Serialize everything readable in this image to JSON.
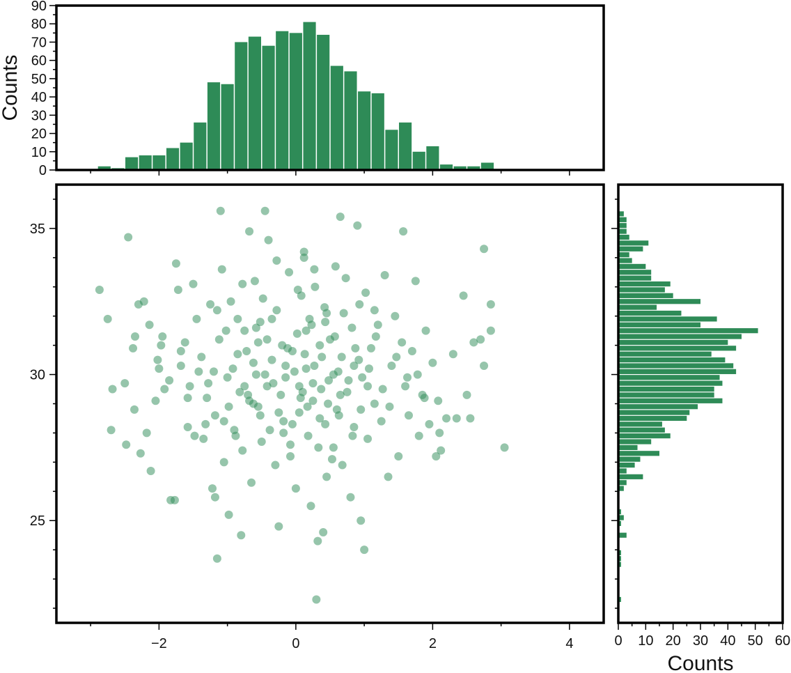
{
  "colors": {
    "fill": "#2e8b57",
    "frame": "#000000"
  },
  "chart_data": [
    {
      "id": "top-histogram",
      "type": "bar",
      "orientation": "vertical",
      "title": "",
      "xlabel": "",
      "ylabel": "Counts",
      "xlim": [
        -3.5,
        4.5
      ],
      "ylim": [
        0,
        90
      ],
      "yticks": [
        "0",
        "10",
        "20",
        "30",
        "40",
        "50",
        "60",
        "70",
        "80",
        "90"
      ],
      "bin_edges": [
        -3.1,
        -2.9,
        -2.7,
        -2.5,
        -2.3,
        -2.1,
        -1.9,
        -1.7,
        -1.5,
        -1.3,
        -1.1,
        -0.9,
        -0.7,
        -0.5,
        -0.3,
        -0.1,
        0.1,
        0.3,
        0.5,
        0.7,
        0.9,
        1.1,
        1.3,
        1.5,
        1.7,
        1.9,
        2.1,
        2.3,
        2.5,
        2.7,
        2.9,
        3.1
      ],
      "values": [
        0,
        2,
        1,
        7,
        8,
        8,
        12,
        15,
        26,
        48,
        47,
        70,
        73,
        68,
        76,
        75,
        81,
        74,
        57,
        54,
        43,
        42,
        22,
        26,
        10,
        13,
        3,
        2,
        2,
        4,
        0
      ]
    },
    {
      "id": "right-histogram",
      "type": "bar",
      "orientation": "horizontal",
      "title": "",
      "xlabel": "Counts",
      "ylabel": "",
      "xlim": [
        0,
        60
      ],
      "ylim": [
        21.5,
        36.5
      ],
      "xticks": [
        "0",
        "10",
        "20",
        "30",
        "40",
        "50",
        "60"
      ],
      "bin_edges": [
        22.2,
        22.4,
        22.6,
        22.8,
        23.0,
        23.2,
        23.4,
        23.6,
        23.8,
        24.0,
        24.2,
        24.4,
        24.6,
        24.8,
        25.0,
        25.2,
        25.4,
        25.6,
        25.8,
        26.0,
        26.2,
        26.4,
        26.6,
        26.8,
        27.0,
        27.2,
        27.4,
        27.6,
        27.8,
        28.0,
        28.2,
        28.4,
        28.6,
        28.8,
        29.0,
        29.2,
        29.4,
        29.6,
        29.8,
        30.0,
        30.2,
        30.4,
        30.6,
        30.8,
        31.0,
        31.2,
        31.4,
        31.6,
        31.8,
        32.0,
        32.2,
        32.4,
        32.6,
        32.8,
        33.0,
        33.2,
        33.4,
        33.6,
        33.8,
        34.0,
        34.2,
        34.4,
        34.6,
        34.8,
        35.0,
        35.2,
        35.4,
        35.6
      ],
      "values": [
        1,
        0,
        0,
        0,
        0,
        0,
        1,
        1,
        1,
        0,
        0,
        3,
        0,
        1,
        2,
        1,
        0,
        0,
        0,
        2,
        3,
        9,
        3,
        6,
        8,
        15,
        7,
        12,
        19,
        17,
        16,
        25,
        26,
        29,
        38,
        35,
        35,
        38,
        37,
        43,
        42,
        39,
        34,
        43,
        40,
        45,
        51,
        30,
        36,
        23,
        14,
        30,
        20,
        17,
        19,
        12,
        12,
        10,
        5,
        4,
        9,
        11,
        4,
        3,
        3,
        3,
        2,
        2
      ]
    },
    {
      "id": "scatter",
      "type": "scatter",
      "title": "",
      "xlabel": "",
      "ylabel": "",
      "xlim": [
        -3.5,
        4.5
      ],
      "ylim": [
        21.5,
        36.5
      ],
      "xticks": [
        "−2",
        "0",
        "2",
        "4"
      ],
      "yticks": [
        "25",
        "30",
        "35"
      ],
      "points": [
        [
          -2.87,
          32.9
        ],
        [
          -2.75,
          31.9
        ],
        [
          -2.68,
          29.5
        ],
        [
          -2.5,
          29.7
        ],
        [
          -2.45,
          34.7
        ],
        [
          -2.38,
          30.9
        ],
        [
          -2.35,
          31.3
        ],
        [
          -2.3,
          32.4
        ],
        [
          -2.22,
          32.5
        ],
        [
          -2.14,
          31.7
        ],
        [
          -2.7,
          28.1
        ],
        [
          -2.48,
          27.6
        ],
        [
          -2.36,
          28.8
        ],
        [
          -2.27,
          27.3
        ],
        [
          -2.18,
          28.0
        ],
        [
          -2.12,
          26.7
        ],
        [
          -2.05,
          29.1
        ],
        [
          -2.0,
          30.2
        ],
        [
          -1.97,
          31.0
        ],
        [
          -1.92,
          29.5
        ],
        [
          -1.83,
          25.7
        ],
        [
          -1.77,
          25.7
        ],
        [
          -1.75,
          33.8
        ],
        [
          -1.72,
          32.9
        ],
        [
          -1.68,
          30.3
        ],
        [
          -1.62,
          31.1
        ],
        [
          -1.58,
          28.2
        ],
        [
          -1.55,
          29.6
        ],
        [
          -1.5,
          33.1
        ],
        [
          -1.45,
          31.9
        ],
        [
          -1.38,
          30.6
        ],
        [
          -1.35,
          27.8
        ],
        [
          -1.3,
          29.2
        ],
        [
          -1.25,
          32.4
        ],
        [
          -1.2,
          30.1
        ],
        [
          -1.18,
          28.6
        ],
        [
          -1.15,
          23.7
        ],
        [
          -1.12,
          31.2
        ],
        [
          -1.1,
          35.6
        ],
        [
          -1.08,
          33.6
        ],
        [
          -1.22,
          26.1
        ],
        [
          -1.18,
          25.8
        ],
        [
          -1.05,
          27.0
        ],
        [
          -1.0,
          29.9
        ],
        [
          -0.98,
          25.2
        ],
        [
          -0.95,
          32.5
        ],
        [
          -0.9,
          28.1
        ],
        [
          -0.85,
          30.7
        ],
        [
          -0.8,
          24.5
        ],
        [
          -0.78,
          27.4
        ],
        [
          -0.75,
          31.5
        ],
        [
          -0.7,
          29.3
        ],
        [
          -0.68,
          34.9
        ],
        [
          -0.65,
          26.3
        ],
        [
          -0.6,
          33.2
        ],
        [
          -0.58,
          30.0
        ],
        [
          -0.55,
          28.9
        ],
        [
          -0.52,
          31.8
        ],
        [
          -0.5,
          27.7
        ],
        [
          -0.45,
          35.6
        ],
        [
          -0.42,
          29.6
        ],
        [
          -0.4,
          34.6
        ],
        [
          -0.35,
          30.5
        ],
        [
          -0.3,
          26.9
        ],
        [
          -0.28,
          32.2
        ],
        [
          -0.25,
          24.8
        ],
        [
          -0.2,
          31.0
        ],
        [
          -0.18,
          28.4
        ],
        [
          -0.15,
          29.9
        ],
        [
          -0.1,
          33.5
        ],
        [
          -0.08,
          27.2
        ],
        [
          -0.05,
          30.8
        ],
        [
          0.0,
          26.1
        ],
        [
          0.02,
          31.4
        ],
        [
          0.05,
          28.7
        ],
        [
          0.08,
          32.7
        ],
        [
          0.1,
          29.4
        ],
        [
          0.12,
          34.2
        ],
        [
          0.15,
          30.2
        ],
        [
          0.18,
          27.9
        ],
        [
          0.2,
          31.9
        ],
        [
          0.22,
          25.5
        ],
        [
          0.25,
          29.1
        ],
        [
          0.28,
          33.0
        ],
        [
          0.3,
          22.3
        ],
        [
          0.32,
          24.3
        ],
        [
          0.35,
          28.5
        ],
        [
          0.38,
          30.6
        ],
        [
          0.4,
          24.6
        ],
        [
          0.42,
          32.3
        ],
        [
          0.45,
          26.5
        ],
        [
          0.48,
          29.8
        ],
        [
          0.5,
          31.2
        ],
        [
          0.55,
          27.5
        ],
        [
          0.58,
          33.7
        ],
        [
          0.6,
          28.8
        ],
        [
          0.62,
          30.1
        ],
        [
          0.65,
          35.4
        ],
        [
          0.68,
          26.9
        ],
        [
          0.7,
          32.1
        ],
        [
          0.75,
          29.4
        ],
        [
          0.8,
          25.8
        ],
        [
          0.82,
          31.6
        ],
        [
          0.85,
          28.2
        ],
        [
          0.9,
          35.1
        ],
        [
          0.92,
          30.5
        ],
        [
          0.95,
          25.0
        ],
        [
          1.0,
          24.0
        ],
        [
          1.02,
          32.8
        ],
        [
          1.05,
          27.8
        ],
        [
          1.1,
          30.9
        ],
        [
          1.15,
          29.0
        ],
        [
          1.2,
          31.7
        ],
        [
          1.25,
          28.4
        ],
        [
          1.3,
          33.4
        ],
        [
          1.35,
          26.5
        ],
        [
          1.4,
          30.3
        ],
        [
          1.45,
          32.0
        ],
        [
          1.5,
          27.2
        ],
        [
          1.55,
          31.1
        ],
        [
          1.57,
          34.9
        ],
        [
          1.6,
          29.6
        ],
        [
          1.65,
          28.6
        ],
        [
          1.7,
          30.8
        ],
        [
          1.75,
          33.2
        ],
        [
          1.8,
          27.9
        ],
        [
          1.85,
          29.3
        ],
        [
          1.9,
          31.5
        ],
        [
          1.95,
          28.3
        ],
        [
          2.0,
          30.4
        ],
        [
          2.05,
          27.2
        ],
        [
          2.08,
          29.1
        ],
        [
          2.1,
          28.0
        ],
        [
          2.12,
          27.4
        ],
        [
          2.2,
          28.5
        ],
        [
          2.3,
          30.7
        ],
        [
          2.35,
          28.5
        ],
        [
          2.45,
          32.7
        ],
        [
          2.5,
          29.3
        ],
        [
          2.55,
          28.5
        ],
        [
          2.6,
          31.1
        ],
        [
          2.7,
          31.2
        ],
        [
          2.75,
          34.3
        ],
        [
          2.75,
          30.3
        ],
        [
          2.85,
          31.5
        ],
        [
          2.85,
          32.4
        ],
        [
          3.05,
          27.5
        ],
        [
          -0.62,
          30.4
        ],
        [
          -0.33,
          29.7
        ],
        [
          -0.12,
          30.9
        ],
        [
          0.07,
          29.2
        ],
        [
          0.27,
          30.3
        ],
        [
          0.47,
          29.0
        ],
        [
          0.67,
          30.6
        ],
        [
          -0.82,
          29.4
        ],
        [
          -0.52,
          28.6
        ],
        [
          -0.22,
          29.3
        ],
        [
          0.17,
          28.9
        ],
        [
          0.37,
          29.5
        ],
        [
          0.77,
          29.8
        ],
        [
          -0.72,
          30.8
        ],
        [
          -0.42,
          31.2
        ],
        [
          -0.02,
          30.1
        ],
        [
          0.57,
          31.3
        ],
        [
          0.97,
          29.9
        ],
        [
          -0.92,
          30.2
        ],
        [
          -0.62,
          29.0
        ],
        [
          0.13,
          30.7
        ],
        [
          0.43,
          28.3
        ],
        [
          0.87,
          30.9
        ],
        [
          -1.02,
          31.5
        ],
        [
          -0.38,
          28.1
        ],
        [
          0.23,
          31.7
        ],
        [
          0.63,
          28.6
        ],
        [
          1.07,
          30.2
        ],
        [
          -1.28,
          29.7
        ],
        [
          -0.48,
          32.6
        ],
        [
          0.33,
          27.5
        ],
        [
          0.93,
          32.4
        ],
        [
          1.27,
          29.5
        ],
        [
          -1.42,
          30.1
        ],
        [
          -0.88,
          27.9
        ],
        [
          0.03,
          32.9
        ],
        [
          0.53,
          27.1
        ],
        [
          1.17,
          31.3
        ],
        [
          -1.58,
          29.2
        ],
        [
          -0.78,
          33.1
        ],
        [
          -0.08,
          27.6
        ],
        [
          0.73,
          33.3
        ],
        [
          1.37,
          28.9
        ],
        [
          -1.68,
          30.8
        ],
        [
          -0.98,
          28.9
        ],
        [
          -0.28,
          33.9
        ],
        [
          0.83,
          27.9
        ],
        [
          1.47,
          30.6
        ],
        [
          -1.85,
          29.8
        ],
        [
          -1.15,
          32.2
        ],
        [
          -0.18,
          28.0
        ],
        [
          0.27,
          33.6
        ],
        [
          1.63,
          29.9
        ],
        [
          -1.95,
          31.3
        ],
        [
          -1.32,
          28.3
        ],
        [
          -0.58,
          31.6
        ],
        [
          0.12,
          34.0
        ],
        [
          1.78,
          30.0
        ],
        [
          -2.02,
          30.5
        ],
        [
          -1.48,
          27.9
        ],
        [
          -0.68,
          29.1
        ],
        [
          0.43,
          31.8
        ],
        [
          1.88,
          29.2
        ],
        [
          -0.35,
          31.9
        ],
        [
          0.05,
          29.6
        ],
        [
          0.35,
          31.0
        ],
        [
          -0.15,
          30.3
        ],
        [
          0.15,
          31.5
        ],
        [
          -0.45,
          30.0
        ],
        [
          0.55,
          30.0
        ],
        [
          -0.25,
          28.7
        ],
        [
          0.25,
          29.7
        ],
        [
          0.65,
          29.3
        ],
        [
          -0.55,
          31.1
        ],
        [
          -0.05,
          28.3
        ],
        [
          0.45,
          32.1
        ],
        [
          0.85,
          30.3
        ],
        [
          -0.75,
          29.6
        ],
        [
          0.95,
          28.8
        ],
        [
          1.05,
          29.6
        ],
        [
          -0.85,
          31.9
        ],
        [
          1.15,
          32.2
        ],
        [
          -1.05,
          28.4
        ]
      ]
    }
  ]
}
